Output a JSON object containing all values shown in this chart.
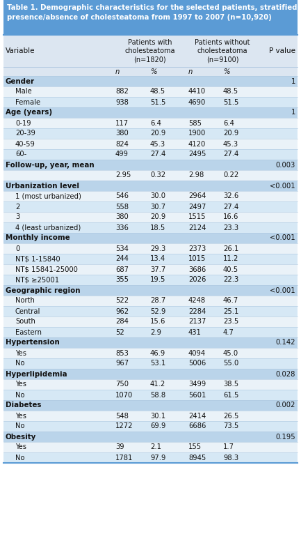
{
  "title": "Table 1. Demographic characteristics for the selected patients, stratified by presence/absence of cholesteatoma from 1997 to 2007 (n=10,920)",
  "title_bg": "#5b9bd5",
  "title_color": "#ffffff",
  "header_bg": "#dce6f1",
  "row_bg_light": "#eaf2f8",
  "row_bg_mid": "#d6e8f5",
  "section_bg": "#bad4ea",
  "border_color": "#5b9bd5",
  "line_color": "#aec8e0",
  "rows": [
    {
      "type": "subheader",
      "label": "",
      "c1": "n",
      "c2": "%",
      "c3": "n",
      "c4": "%",
      "p": ""
    },
    {
      "type": "section",
      "label": "Gender",
      "c1": "",
      "c2": "",
      "c3": "",
      "c4": "",
      "p": "1"
    },
    {
      "type": "data",
      "label": "Male",
      "c1": "882",
      "c2": "48.5",
      "c3": "4410",
      "c4": "48.5",
      "p": ""
    },
    {
      "type": "data",
      "label": "Female",
      "c1": "938",
      "c2": "51.5",
      "c3": "4690",
      "c4": "51.5",
      "p": ""
    },
    {
      "type": "section",
      "label": "Age (years)",
      "c1": "",
      "c2": "",
      "c3": "",
      "c4": "",
      "p": "1"
    },
    {
      "type": "data",
      "label": "0-19",
      "c1": "117",
      "c2": "6.4",
      "c3": "585",
      "c4": "6.4",
      "p": ""
    },
    {
      "type": "data",
      "label": "20-39",
      "c1": "380",
      "c2": "20.9",
      "c3": "1900",
      "c4": "20.9",
      "p": ""
    },
    {
      "type": "data",
      "label": "40-59",
      "c1": "824",
      "c2": "45.3",
      "c3": "4120",
      "c4": "45.3",
      "p": ""
    },
    {
      "type": "data",
      "label": "60-",
      "c1": "499",
      "c2": "27.4",
      "c3": "2495",
      "c4": "27.4",
      "p": ""
    },
    {
      "type": "section",
      "label": "Follow-up, year, mean",
      "c1": "",
      "c2": "",
      "c3": "",
      "c4": "",
      "p": "0.003"
    },
    {
      "type": "data",
      "label": "",
      "c1": "2.95",
      "c2": "0.32",
      "c3": "2.98",
      "c4": "0.22",
      "p": ""
    },
    {
      "type": "section",
      "label": "Urbanization level",
      "c1": "",
      "c2": "",
      "c3": "",
      "c4": "",
      "p": "<0.001"
    },
    {
      "type": "data",
      "label": "1 (most urbanized)",
      "c1": "546",
      "c2": "30.0",
      "c3": "2964",
      "c4": "32.6",
      "p": ""
    },
    {
      "type": "data",
      "label": "2",
      "c1": "558",
      "c2": "30.7",
      "c3": "2497",
      "c4": "27.4",
      "p": ""
    },
    {
      "type": "data",
      "label": "3",
      "c1": "380",
      "c2": "20.9",
      "c3": "1515",
      "c4": "16.6",
      "p": ""
    },
    {
      "type": "data",
      "label": "4 (least urbanized)",
      "c1": "336",
      "c2": "18.5",
      "c3": "2124",
      "c4": "23.3",
      "p": ""
    },
    {
      "type": "section",
      "label": "Monthly income",
      "c1": "",
      "c2": "",
      "c3": "",
      "c4": "",
      "p": "<0.001"
    },
    {
      "type": "data",
      "label": "0",
      "c1": "534",
      "c2": "29.3",
      "c3": "2373",
      "c4": "26.1",
      "p": ""
    },
    {
      "type": "data",
      "label": "NT$ 1-15840",
      "c1": "244",
      "c2": "13.4",
      "c3": "1015",
      "c4": "11.2",
      "p": ""
    },
    {
      "type": "data",
      "label": "NT$ 15841-25000",
      "c1": "687",
      "c2": "37.7",
      "c3": "3686",
      "c4": "40.5",
      "p": ""
    },
    {
      "type": "data",
      "label": "NT$ ≥25001",
      "c1": "355",
      "c2": "19.5",
      "c3": "2026",
      "c4": "22.3",
      "p": ""
    },
    {
      "type": "section",
      "label": "Geographic region",
      "c1": "",
      "c2": "",
      "c3": "",
      "c4": "",
      "p": "<0.001"
    },
    {
      "type": "data",
      "label": "North",
      "c1": "522",
      "c2": "28.7",
      "c3": "4248",
      "c4": "46.7",
      "p": ""
    },
    {
      "type": "data",
      "label": "Central",
      "c1": "962",
      "c2": "52.9",
      "c3": "2284",
      "c4": "25.1",
      "p": ""
    },
    {
      "type": "data",
      "label": "South",
      "c1": "284",
      "c2": "15.6",
      "c3": "2137",
      "c4": "23.5",
      "p": ""
    },
    {
      "type": "data",
      "label": "Eastern",
      "c1": "52",
      "c2": "2.9",
      "c3": "431",
      "c4": "4.7",
      "p": ""
    },
    {
      "type": "section",
      "label": "Hypertension",
      "c1": "",
      "c2": "",
      "c3": "",
      "c4": "",
      "p": "0.142"
    },
    {
      "type": "data",
      "label": "Yes",
      "c1": "853",
      "c2": "46.9",
      "c3": "4094",
      "c4": "45.0",
      "p": ""
    },
    {
      "type": "data",
      "label": "No",
      "c1": "967",
      "c2": "53.1",
      "c3": "5006",
      "c4": "55.0",
      "p": ""
    },
    {
      "type": "section",
      "label": "Hyperlipidemia",
      "c1": "",
      "c2": "",
      "c3": "",
      "c4": "",
      "p": "0.028"
    },
    {
      "type": "data",
      "label": "Yes",
      "c1": "750",
      "c2": "41.2",
      "c3": "3499",
      "c4": "38.5",
      "p": ""
    },
    {
      "type": "data",
      "label": "No",
      "c1": "1070",
      "c2": "58.8",
      "c3": "5601",
      "c4": "61.5",
      "p": ""
    },
    {
      "type": "section",
      "label": "Diabetes",
      "c1": "",
      "c2": "",
      "c3": "",
      "c4": "",
      "p": "0.002"
    },
    {
      "type": "data",
      "label": "Yes",
      "c1": "548",
      "c2": "30.1",
      "c3": "2414",
      "c4": "26.5",
      "p": ""
    },
    {
      "type": "data",
      "label": "No",
      "c1": "1272",
      "c2": "69.9",
      "c3": "6686",
      "c4": "73.5",
      "p": ""
    },
    {
      "type": "section",
      "label": "Obesity",
      "c1": "",
      "c2": "",
      "c3": "",
      "c4": "",
      "p": "0.195"
    },
    {
      "type": "data",
      "label": "Yes",
      "c1": "39",
      "c2": "2.1",
      "c3": "155",
      "c4": "1.7",
      "p": ""
    },
    {
      "type": "data",
      "label": "No",
      "c1": "1781",
      "c2": "97.9",
      "c3": "8945",
      "c4": "98.3",
      "p": ""
    }
  ]
}
